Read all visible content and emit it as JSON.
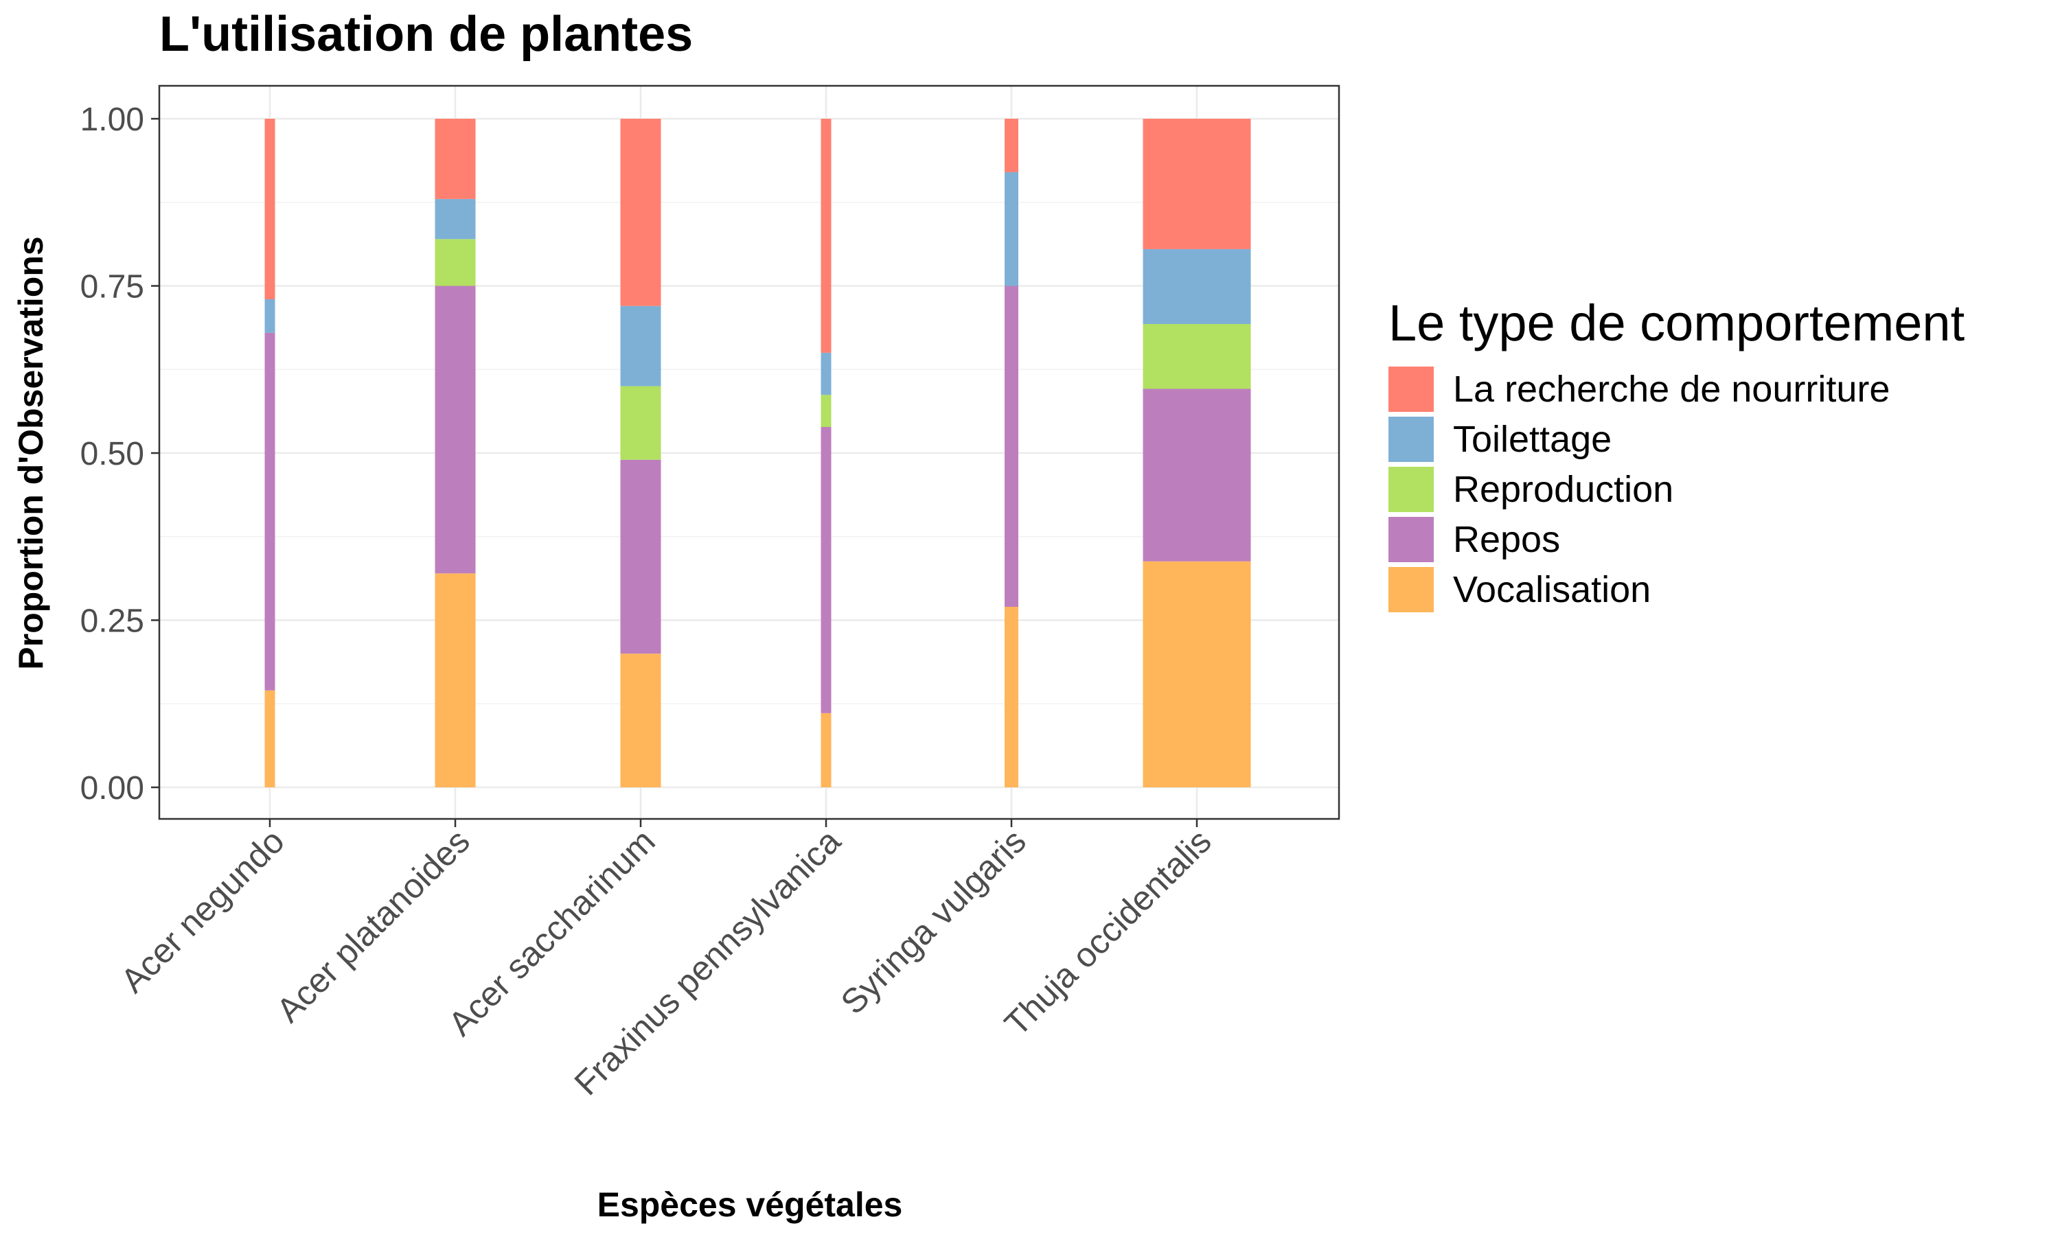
{
  "chart_data": {
    "type": "bar",
    "stacked": true,
    "proportional": true,
    "variable_width": true,
    "title": "L'utilisation de plantes",
    "xlabel": "Espèces végétales",
    "ylabel": "Proportion d'Observations",
    "ylim": [
      0,
      1
    ],
    "y_ticks": [
      "0.00",
      "0.25",
      "0.50",
      "0.75",
      "1.00"
    ],
    "y_tick_values": [
      0,
      0.25,
      0.5,
      0.75,
      1.0
    ],
    "grid": true,
    "legend_title": "Le type de comportement",
    "legend_position": "right",
    "categories": [
      "Acer negundo",
      "Acer platanoides",
      "Acer saccharinum",
      "Fraxinus pennsylvanica",
      "Syringa vulgaris",
      "Thuja occidentalis"
    ],
    "relative_widths": [
      0.15,
      0.59,
      0.59,
      0.15,
      0.2,
      1.57
    ],
    "series": [
      {
        "name": "La recherche de nourriture",
        "color": "#FF8070",
        "values": [
          0.27,
          0.12,
          0.28,
          0.35,
          0.08,
          0.195
        ]
      },
      {
        "name": "Toilettage",
        "color": "#7EB0D6",
        "values": [
          0.05,
          0.06,
          0.12,
          0.063,
          0.17,
          0.112
        ]
      },
      {
        "name": "Reproduction",
        "color": "#B2E061",
        "values": [
          0.0,
          0.07,
          0.11,
          0.048,
          0.0,
          0.097
        ]
      },
      {
        "name": "Repos",
        "color": "#BD7EBE",
        "values": [
          0.535,
          0.43,
          0.29,
          0.428,
          0.48,
          0.258
        ]
      },
      {
        "name": "Vocalisation",
        "color": "#FFB55A",
        "values": [
          0.145,
          0.32,
          0.2,
          0.111,
          0.27,
          0.338
        ]
      }
    ]
  }
}
